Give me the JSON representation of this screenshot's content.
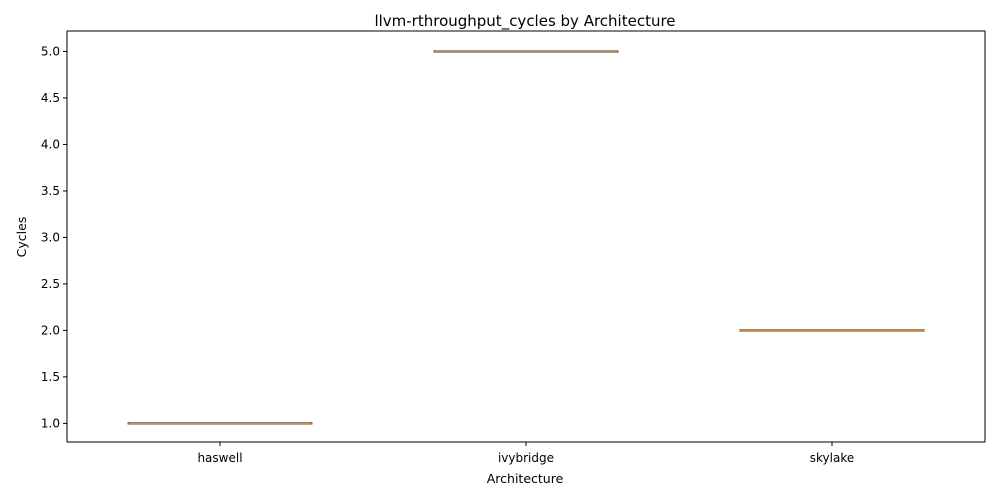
{
  "chart_data": {
    "type": "box",
    "title": "llvm-rthroughput_cycles by Architecture",
    "xlabel": "Architecture",
    "ylabel": "Cycles",
    "categories": [
      "haswell",
      "ivybridge",
      "skylake"
    ],
    "values": [
      1.0,
      5.0,
      2.0
    ],
    "ylim": [
      0.8,
      5.22
    ],
    "yticks": [
      "1.0",
      "1.5",
      "2.0",
      "2.5",
      "3.0",
      "3.5",
      "4.0",
      "4.5",
      "5.0"
    ],
    "grid": false,
    "colors": {
      "median": "#d08a4a",
      "box": "#000000"
    }
  }
}
